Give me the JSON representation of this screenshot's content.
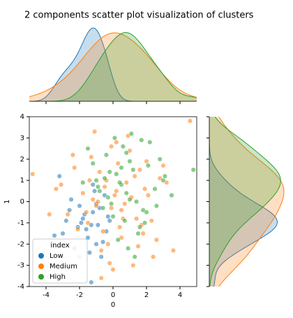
{
  "chart_data": {
    "type": "scatter",
    "title": "2 components scatter plot visualization of clusters",
    "xlabel": "0",
    "ylabel": "1",
    "xlim": [
      -5,
      5
    ],
    "ylim": [
      -4,
      4
    ],
    "xticks": [
      -4,
      -2,
      0,
      2,
      4
    ],
    "yticks": [
      -4,
      -3,
      -2,
      -1,
      0,
      1,
      2,
      3,
      4
    ],
    "legend_title": "index",
    "legend_loc": "lower left",
    "marginal": "kde",
    "series": [
      {
        "name": "Low",
        "color": "#1f77b4",
        "x": [
          -1.2,
          -2.1,
          -0.5,
          -1.8,
          -3.0,
          -1.0,
          -0.2,
          -2.5,
          -1.5,
          -0.8,
          -3.5,
          -1.3,
          -0.9,
          -2.0,
          -1.1,
          -0.4,
          -1.7,
          -2.8,
          -1.4,
          -0.6,
          -3.2,
          -1.9,
          -1.0,
          -2.3,
          -0.3,
          -1.6,
          -1.2,
          -0.7,
          -2.6,
          -1.3
        ],
        "y": [
          -0.5,
          -1.2,
          0.3,
          -0.8,
          -1.5,
          -2.0,
          -0.9,
          0.1,
          -1.7,
          -0.3,
          -1.6,
          -3.8,
          -1.1,
          -0.2,
          0.5,
          -1.4,
          -0.6,
          -0.9,
          -2.4,
          -1.9,
          1.2,
          -1.0,
          -0.1,
          -2.2,
          -0.7,
          -1.3,
          0.8,
          -2.6,
          -0.4,
          -1.1
        ]
      },
      {
        "name": "Medium",
        "color": "#ff7f0e",
        "x": [
          0.2,
          -1.5,
          1.3,
          -0.7,
          2.1,
          -2.3,
          0.5,
          -0.1,
          1.8,
          -3.1,
          0.9,
          -1.0,
          2.6,
          -0.4,
          1.1,
          -2.0,
          0.0,
          3.2,
          -1.3,
          0.6,
          -4.8,
          4.6,
          -0.9,
          1.5,
          -2.7,
          0.3,
          2.3,
          -0.6,
          1.0,
          -1.8,
          0.7,
          -0.2,
          3.6,
          -3.8,
          1.6,
          -1.1,
          0.4,
          2.0,
          -0.5,
          -2.4,
          1.2,
          0.1,
          -1.6,
          2.8,
          -0.3,
          0.8,
          -3.4,
          1.4,
          -0.8,
          0.5,
          2.4,
          -1.2,
          0.2,
          -2.1,
          1.9,
          -0.1,
          3.0,
          -0.7,
          1.7,
          -1.4
        ],
        "y": [
          0.5,
          -1.0,
          1.2,
          -2.3,
          0.3,
          1.6,
          -0.4,
          2.6,
          -1.5,
          0.8,
          3.1,
          -0.2,
          -1.8,
          1.0,
          0.2,
          -2.6,
          -3.2,
          0.9,
          2.1,
          -0.8,
          1.3,
          3.8,
          0.0,
          -2.1,
          -0.6,
          1.8,
          -0.9,
          -1.4,
          2.4,
          0.4,
          -0.1,
          -2.9,
          -2.3,
          -0.6,
          1.5,
          3.3,
          -1.2,
          1.9,
          0.7,
          2.2,
          -3.0,
          0.3,
          -0.5,
          1.1,
          -2.0,
          0.9,
          0.6,
          -0.8,
          1.4,
          -1.7,
          -2.6,
          0.1,
          2.8,
          -1.3,
          0.6,
          -0.3,
          1.7,
          -3.6,
          -1.1,
          1.0
        ]
      },
      {
        "name": "High",
        "color": "#2ca02c",
        "x": [
          0.5,
          1.2,
          -0.3,
          2.0,
          0.8,
          -1.0,
          1.6,
          0.1,
          2.5,
          -0.6,
          1.0,
          0.3,
          3.1,
          -1.5,
          1.4,
          0.7,
          -0.2,
          2.2,
          0.9,
          -0.8,
          4.8,
          1.8,
          0.4,
          -1.2,
          2.8,
          0.0,
          1.1,
          -0.5,
          1.5,
          3.5,
          0.6,
          -0.1,
          2.1,
          1.3,
          -0.9,
          0.2,
          1.9,
          0.8,
          -0.4,
          2.6,
          1.0,
          0.5,
          -1.8,
          1.7,
          3.0
        ],
        "y": [
          0.8,
          1.5,
          0.2,
          -0.5,
          2.3,
          1.0,
          -1.2,
          3.0,
          0.6,
          -0.3,
          1.9,
          -1.8,
          1.2,
          2.5,
          0.0,
          -0.9,
          1.4,
          2.8,
          -2.2,
          0.5,
          1.5,
          -0.4,
          0.9,
          1.8,
          2.0,
          -0.7,
          3.2,
          1.1,
          -1.5,
          0.3,
          2.6,
          -0.1,
          1.7,
          -2.6,
          0.7,
          1.3,
          -1.0,
          0.4,
          2.2,
          -0.2,
          0.1,
          1.6,
          0.9,
          2.9,
          1.0
        ]
      }
    ]
  }
}
